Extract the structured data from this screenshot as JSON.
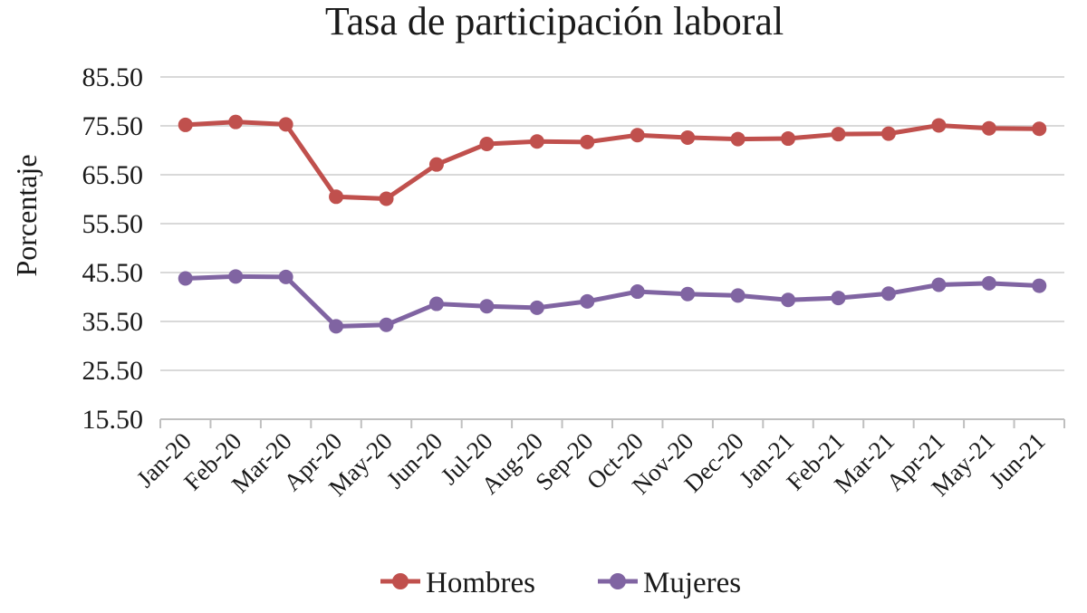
{
  "chart_data": {
    "type": "line",
    "title": "Tasa de participación laboral",
    "ylabel": "Porcentaje",
    "xlabel": "",
    "ylim": [
      15.5,
      85.5
    ],
    "yticks": [
      "15.50",
      "25.50",
      "35.50",
      "45.50",
      "55.50",
      "65.50",
      "75.50",
      "85.50"
    ],
    "grid": true,
    "legend_position": "bottom",
    "x": [
      "Jan-20",
      "Feb-20",
      "Mar-20",
      "Apr-20",
      "May-20",
      "Jun-20",
      "Jul-20",
      "Aug-20",
      "Sep-20",
      "Oct-20",
      "Nov-20",
      "Dec-20",
      "Jan-21",
      "Feb-21",
      "Mar-21",
      "Apr-21",
      "May-21",
      "Jun-21"
    ],
    "series": [
      {
        "name": "Hombres",
        "color": "#c0504d",
        "values": [
          75.7,
          76.3,
          75.8,
          61.0,
          60.6,
          67.6,
          71.8,
          72.3,
          72.2,
          73.6,
          73.1,
          72.8,
          72.9,
          73.8,
          73.9,
          75.6,
          75.0,
          74.9
        ]
      },
      {
        "name": "Mujeres",
        "color": "#8064a2",
        "values": [
          44.3,
          44.7,
          44.6,
          34.5,
          34.8,
          39.1,
          38.6,
          38.3,
          39.6,
          41.6,
          41.1,
          40.8,
          39.9,
          40.3,
          41.2,
          43.0,
          43.3,
          42.8
        ]
      }
    ]
  }
}
